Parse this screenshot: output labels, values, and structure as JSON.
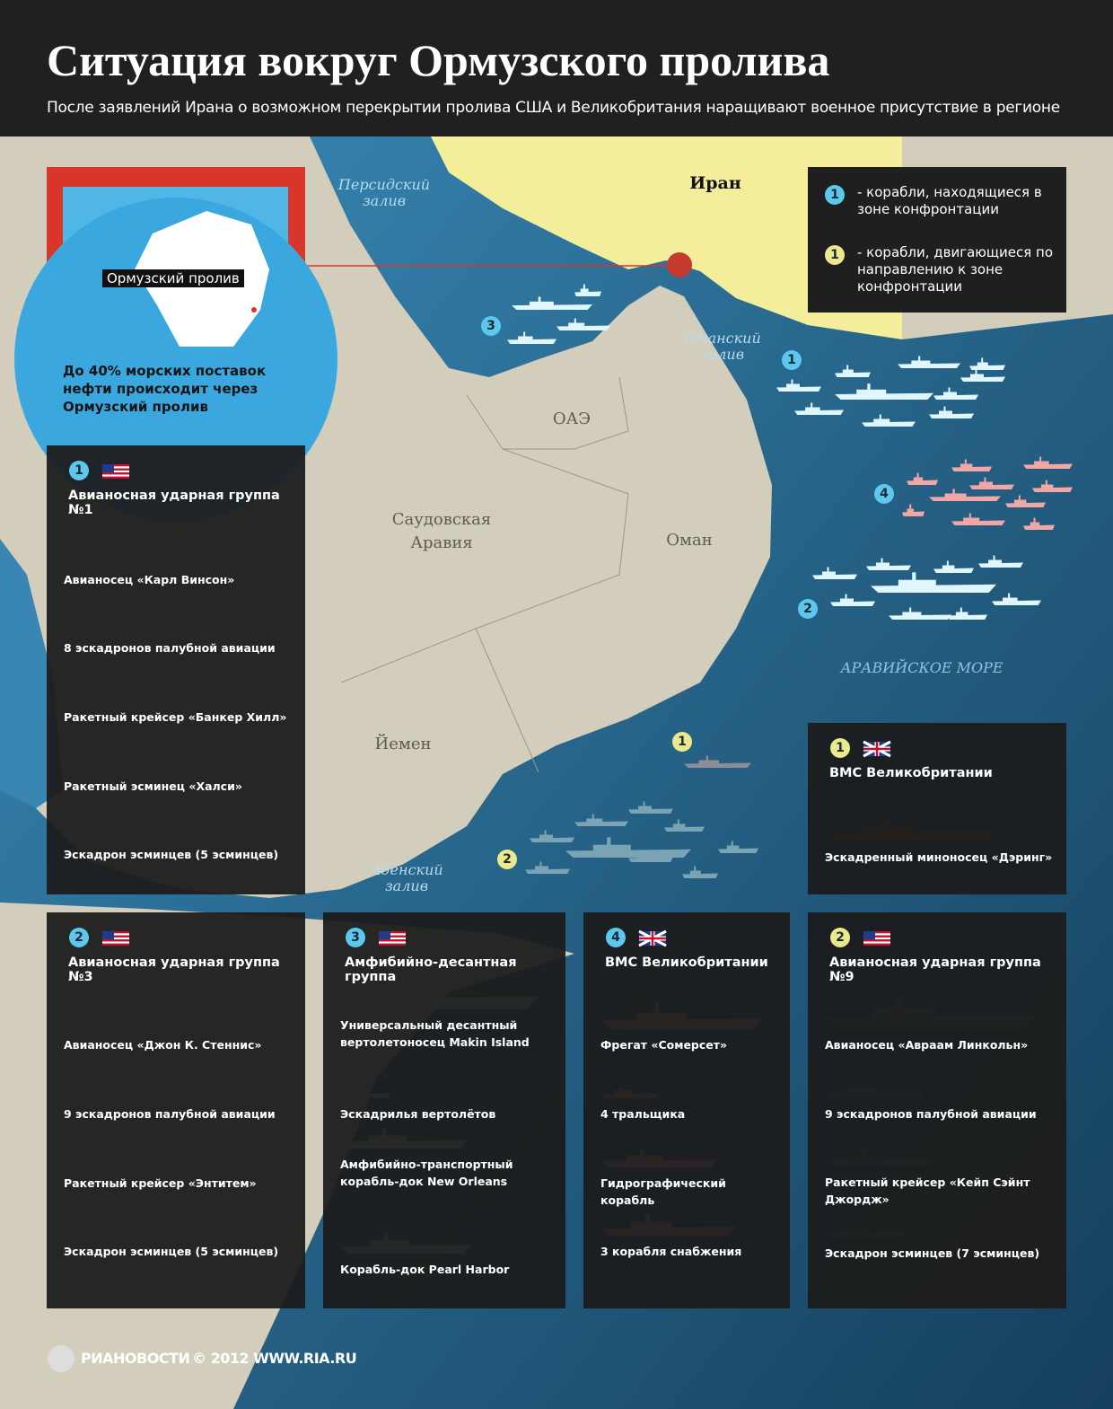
{
  "header": {
    "title": "Ситуация вокруг Ормузского пролива",
    "subtitle": "После заявлений Ирана о возможном перекрытии пролива США и Великобритания наращивают военное присутствие в регионе"
  },
  "inset": {
    "label": "Ормузский пролив",
    "note": "До 40% морских поставок нефти происходит через Ормузский пролив"
  },
  "map_labels": [
    "Персидский залив",
    "Иран",
    "Оманский залив",
    "ОАЭ",
    "Саудовская Аравия",
    "Оман",
    "Йемен",
    "АРАВИЙСКОЕ МОРЕ",
    "Аденский залив"
  ],
  "map_badges": [
    "3",
    "1",
    "4",
    "2",
    "1",
    "2"
  ],
  "legend": [
    {
      "badge": "1",
      "text": "- корабли, находящиеся в зоне конфронтации"
    },
    {
      "badge": "1",
      "text": "- корабли, двигающиеся по направлению к зоне конфронтации"
    }
  ],
  "panels": [
    {
      "badge": "1",
      "title": "Авианосная ударная группа №1",
      "items": [
        "Авианосец «Карл Винсон»",
        "8 эскадронов палубной авиации",
        "Ракетный крейсер «Банкер Хилл»",
        "Ракетный эсминец «Халси»",
        "Эскадрон эсминцев (5 эсминцев)"
      ]
    },
    {
      "badge": "1",
      "title": "ВМС Великобритании",
      "items": [
        "Эскадренный миноносец «Дэринг»"
      ]
    },
    {
      "badge": "2",
      "title": "Авианосная ударная группа №3",
      "items": [
        "Авианосец «Джон К. Стеннис»",
        "9 эскадронов палубной авиации",
        "Ракетный крейсер «Энтитем»",
        "Эскадрон эсминцев (5 эсминцев)"
      ]
    },
    {
      "badge": "3",
      "title": "Амфибийно-десантная группа",
      "items": [
        "Универсальный десантный вертолетоносец Makin Island",
        "Эскадрилья вертолётов",
        "Амфибийно-транспортный корабль-док New Orleans",
        "Корабль-док Pearl Harbor"
      ]
    },
    {
      "badge": "4",
      "title": "ВМС Великобритании",
      "items": [
        "Фрегат «Сомерсет»",
        "4 тральщика",
        "Гидрографический корабль",
        "3 корабля снабжения"
      ]
    },
    {
      "badge": "2",
      "title": "Авианосная ударная группа №9",
      "items": [
        "Авианосец «Авраам Линкольн»",
        "9 эскадронов палубной авиации",
        "Ракетный крейсер «Кейп Сэйнт Джордж»",
        "Эскадрон эсминцев (7 эсминцев)"
      ]
    }
  ],
  "footer": {
    "logo": "РИАНОВОСТИ",
    "copyright": "© 2012 WWW.RIA.RU"
  }
}
